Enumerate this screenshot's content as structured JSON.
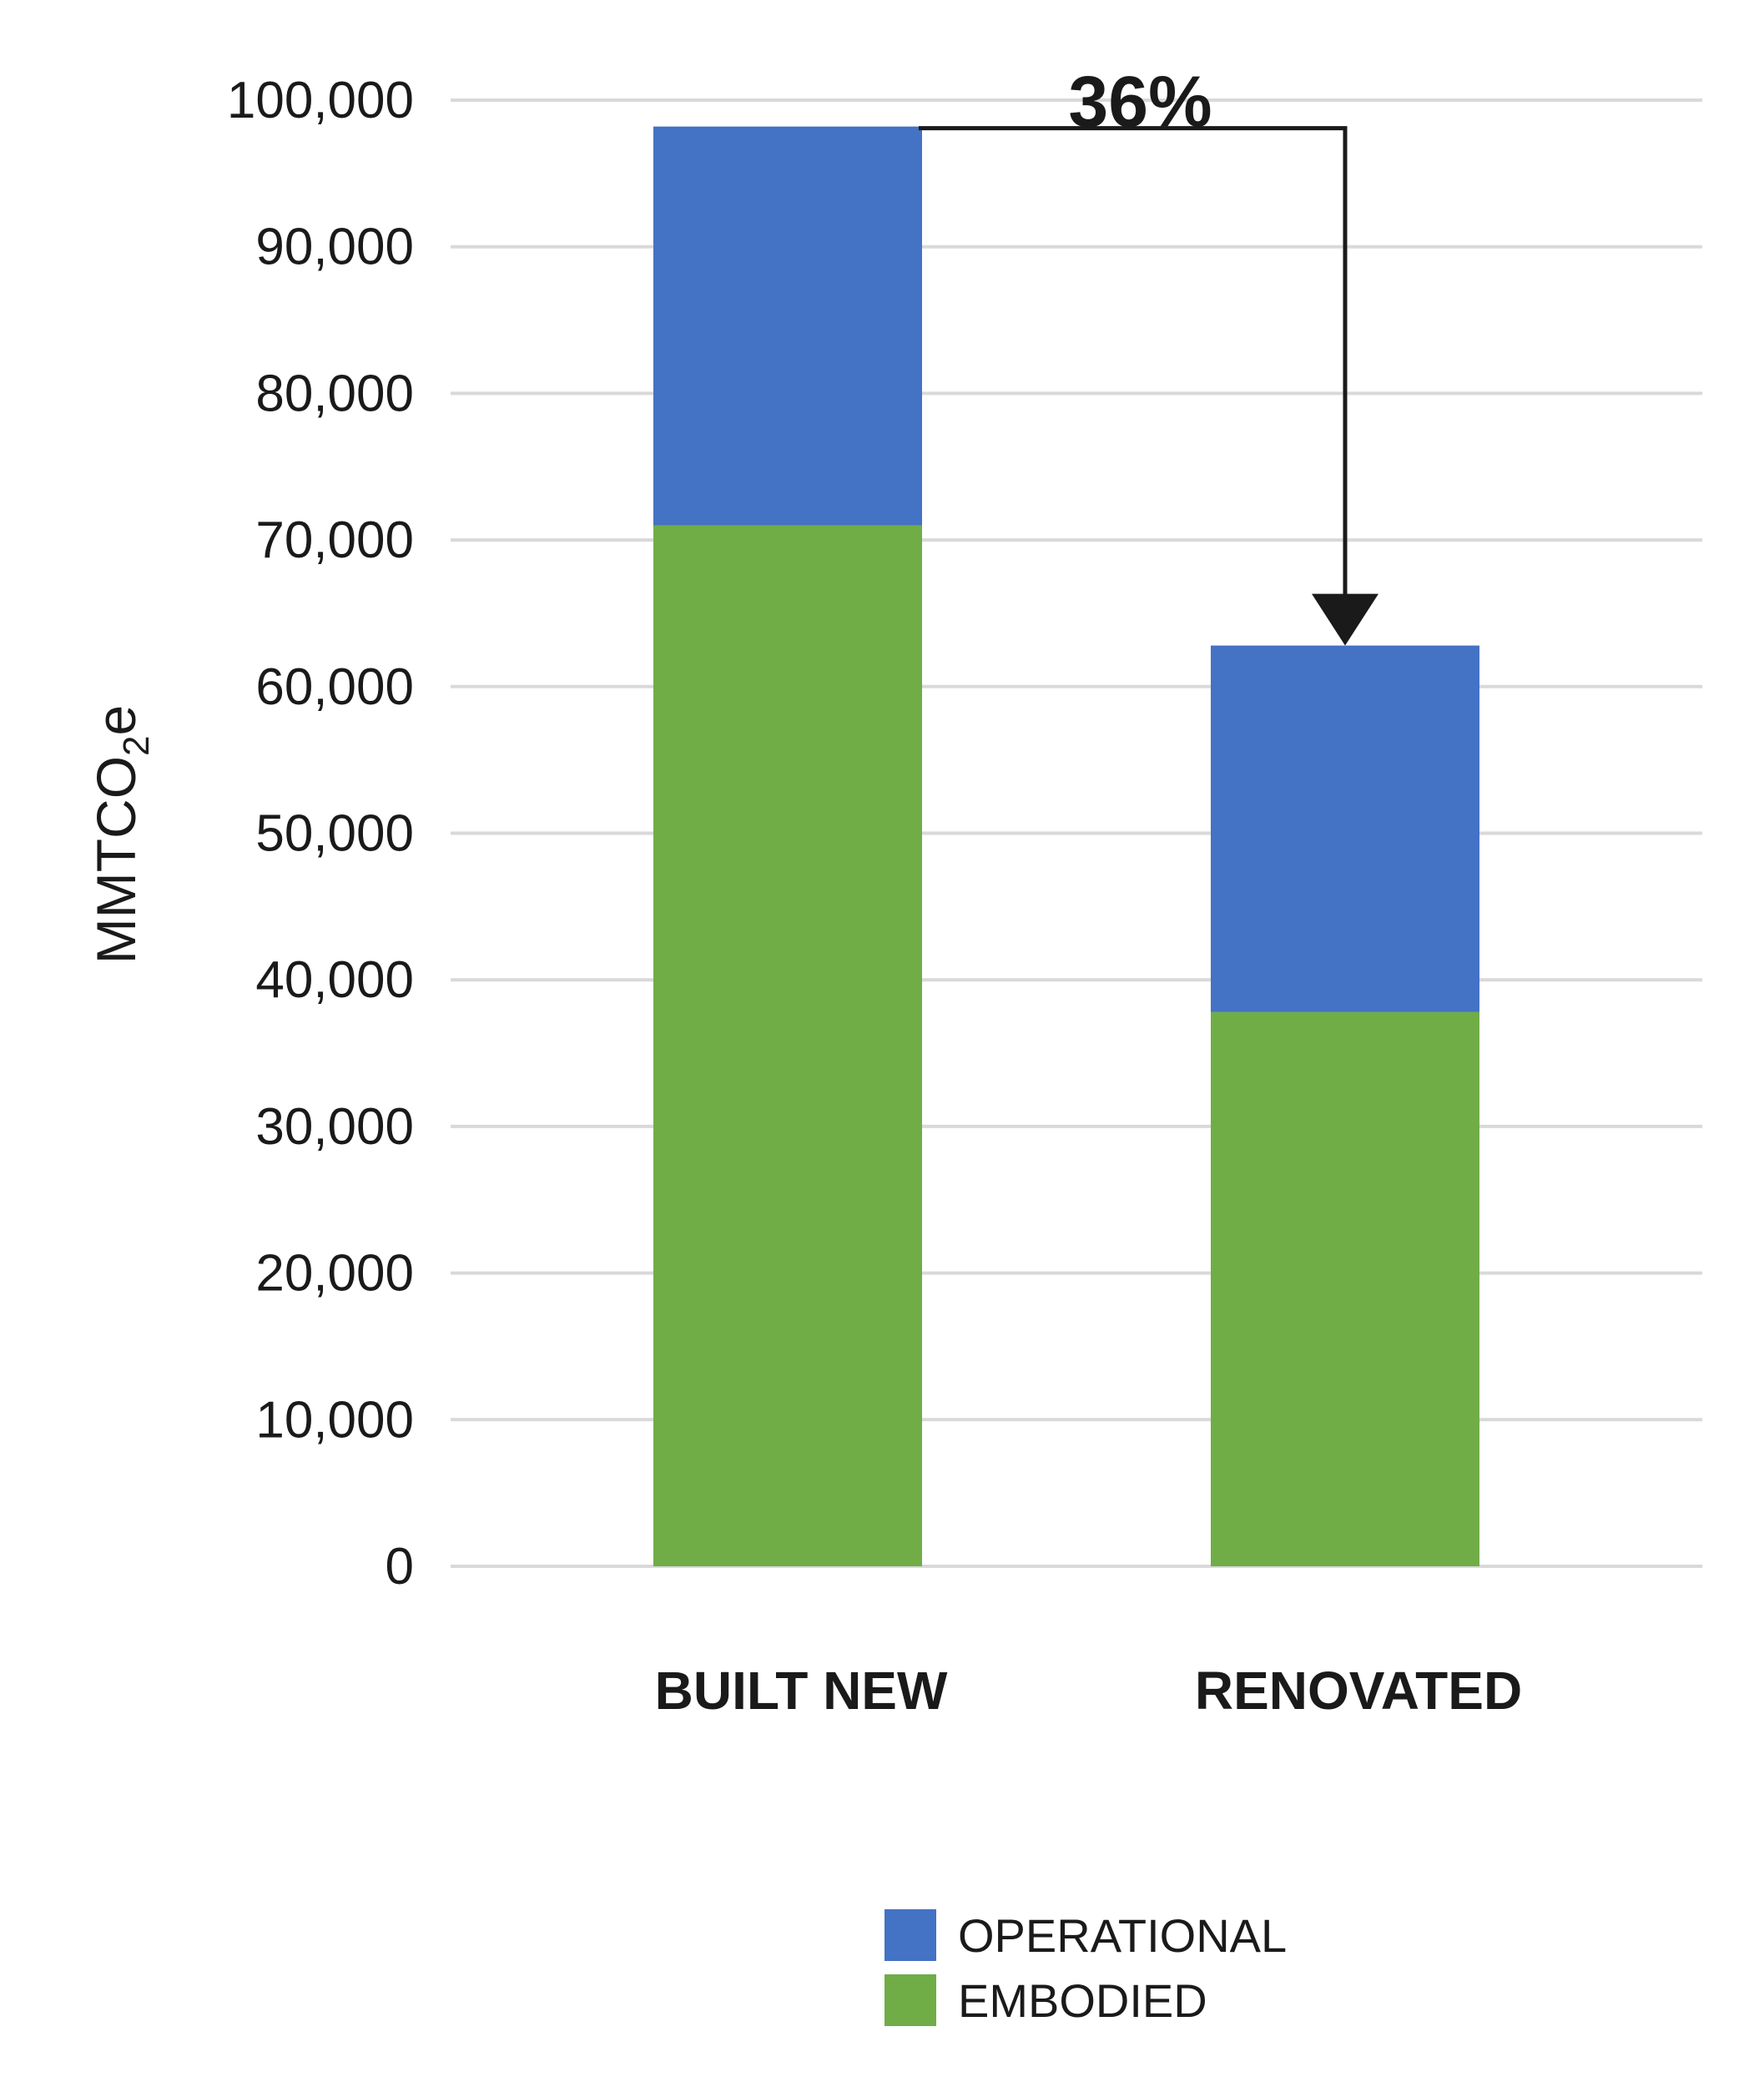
{
  "chart_data": {
    "type": "bar",
    "stacked": true,
    "categories": [
      "BUILT NEW",
      "RENOVATED"
    ],
    "series": [
      {
        "name": "EMBODIED",
        "color": "#70AD47",
        "values": [
          71000,
          37800
        ]
      },
      {
        "name": "OPERATIONAL",
        "color": "#4472C4",
        "values": [
          27200,
          25000
        ]
      }
    ],
    "ylabel": "MMTCO",
    "ylabel_subscript": "2",
    "ylabel_suffix": "e",
    "ylim": [
      0,
      100000
    ],
    "yticks": [
      0,
      10000,
      20000,
      30000,
      40000,
      50000,
      60000,
      70000,
      80000,
      90000,
      100000
    ],
    "ytick_labels": [
      "0",
      "10,000",
      "20,000",
      "30,000",
      "40,000",
      "50,000",
      "60,000",
      "70,000",
      "80,000",
      "90,000",
      "100,000"
    ],
    "grid": true,
    "legend_position": "bottom-right",
    "legend": [
      {
        "label": "OPERATIONAL",
        "color": "#4472C4"
      },
      {
        "label": "EMBODIED",
        "color": "#70AD47"
      }
    ],
    "annotation": {
      "text": "36%",
      "from_category": "BUILT NEW",
      "to_category": "RENOVATED"
    },
    "gridline_color": "#D9D9D9",
    "arrow_color": "#1a1a1a"
  }
}
